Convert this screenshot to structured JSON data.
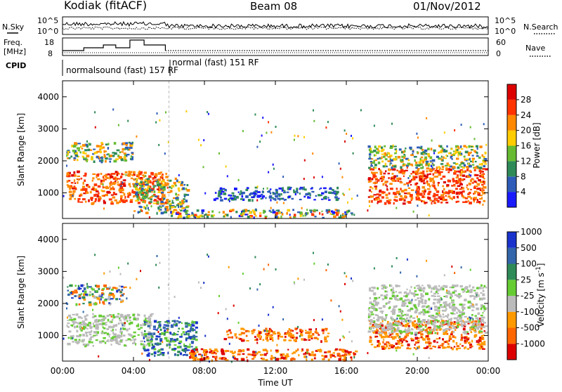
{
  "header": {
    "site": "Kodiak (fitACF)",
    "beam": "Beam 08",
    "date": "01/Nov/2012"
  },
  "panels": {
    "nsky": {
      "left_label": "N.Sky",
      "right_label": "N.Search",
      "left_ticks": [
        "10^5",
        "10^0"
      ],
      "right_ticks": [
        "10^5",
        "10^0"
      ]
    },
    "freq": {
      "left_label_1": "Freq.",
      "left_label_2": "[MHz]",
      "right_label": "Nave",
      "left_ticks": [
        "18",
        "8"
      ],
      "right_ticks": [
        "60",
        "0"
      ]
    },
    "cpid": {
      "label": "CPID",
      "segments": [
        "normalsound (fast) 157 RF",
        "normal (fast) 151 RF"
      ]
    }
  },
  "chart_data": [
    {
      "type": "heatmap",
      "name": "power",
      "xlabel": "",
      "ylabel": "Slant Range [km]",
      "y_ticks": [
        "1000",
        "2000",
        "3000",
        "4000"
      ],
      "ylim": [
        200,
        4500
      ],
      "xlim_hours": [
        0,
        24
      ],
      "colorbar": {
        "label": "Power [dB]",
        "ticks": [
          "4",
          "8",
          "12",
          "16",
          "20",
          "24",
          "28"
        ],
        "range": [
          0,
          30
        ],
        "colors": [
          "#1a1aff",
          "#2e5cb8",
          "#2e8b57",
          "#66bb33",
          "#ffcc00",
          "#ff8800",
          "#ff3300",
          "#dd0000"
        ]
      },
      "echo_regions": [
        {
          "t0": 0.2,
          "t1": 5.8,
          "r0": 700,
          "r1": 1700,
          "level": "strong"
        },
        {
          "t0": 0.2,
          "t1": 4.0,
          "r0": 2000,
          "r1": 2600,
          "level": "medium"
        },
        {
          "t0": 4.0,
          "t1": 7.0,
          "r0": 400,
          "r1": 1500,
          "level": "medium"
        },
        {
          "t0": 6.0,
          "t1": 16.5,
          "r0": 250,
          "r1": 500,
          "level": "mixed"
        },
        {
          "t0": 8.5,
          "t1": 15.5,
          "r0": 800,
          "r1": 1200,
          "level": "weak"
        },
        {
          "t0": 17.2,
          "t1": 23.8,
          "r0": 700,
          "r1": 1800,
          "level": "strong"
        },
        {
          "t0": 17.2,
          "t1": 23.8,
          "r0": 1800,
          "r1": 2500,
          "level": "medium"
        }
      ]
    },
    {
      "type": "heatmap",
      "name": "velocity",
      "xlabel": "Time UT",
      "ylabel": "Slant Range [km]",
      "y_ticks": [
        "1000",
        "2000",
        "3000",
        "4000"
      ],
      "ylim": [
        200,
        4500
      ],
      "x_ticks": [
        "00:00",
        "04:00",
        "08:00",
        "12:00",
        "16:00",
        "20:00",
        "00:00"
      ],
      "xlim_hours": [
        0,
        24
      ],
      "colorbar": {
        "label": "Velocity [m s^-1]",
        "ticks": [
          "1000",
          "500",
          "100",
          "25",
          "-25",
          "-100",
          "-500",
          "-1000"
        ],
        "colors": [
          "#1a33cc",
          "#3366aa",
          "#2e8b57",
          "#66cc33",
          "#bbbbbb",
          "#ff9900",
          "#ff6600",
          "#dd0000"
        ]
      },
      "echo_regions": [
        {
          "t0": 0.2,
          "t1": 5.0,
          "r0": 700,
          "r1": 1700,
          "level": "ground"
        },
        {
          "t0": 0.2,
          "t1": 3.5,
          "r0": 2000,
          "r1": 2600,
          "level": "mixed"
        },
        {
          "t0": 4.5,
          "t1": 7.5,
          "r0": 400,
          "r1": 1500,
          "level": "green"
        },
        {
          "t0": 7.0,
          "t1": 16.5,
          "r0": 250,
          "r1": 600,
          "level": "orange"
        },
        {
          "t0": 9.0,
          "t1": 15.0,
          "r0": 850,
          "r1": 1250,
          "level": "orange"
        },
        {
          "t0": 17.2,
          "t1": 23.8,
          "r0": 600,
          "r1": 1500,
          "level": "orange"
        },
        {
          "t0": 17.2,
          "t1": 23.8,
          "r0": 1100,
          "r1": 2600,
          "level": "ground"
        }
      ]
    }
  ]
}
